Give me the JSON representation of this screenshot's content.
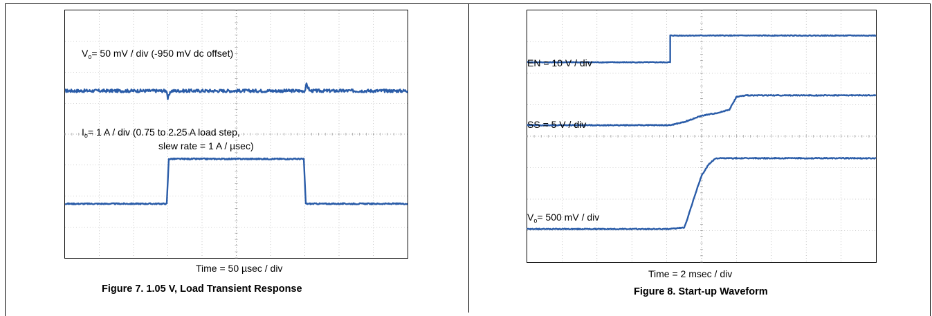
{
  "figures": [
    {
      "caption": "Figure 7. 1.05 V, Load Transient Response",
      "timebase": "Time = 50 µsec / div"
    },
    {
      "caption": "Figure 8. Start-up Waveform",
      "timebase": "Time = 2 msec / div"
    }
  ],
  "chart_data": [
    {
      "type": "line",
      "title": "Figure 7. 1.05 V, Load Transient Response",
      "xlabel": "Time = 50 µsec / div",
      "grid": true,
      "divisions": {
        "x": 10,
        "y": 8
      },
      "trace_color": "#2a5ca8",
      "series": [
        {
          "name_prefix": "V",
          "name_sub": "o",
          "name_rest": "= 50 mV / div (-950 mV dc offset)",
          "x": [
            0,
            2.97,
            3.0,
            3.1,
            3.3,
            7.0,
            7.05,
            7.15,
            7.3,
            10
          ],
          "y": [
            5.4,
            5.4,
            5.15,
            5.4,
            5.4,
            5.4,
            5.6,
            5.4,
            5.4,
            5.4
          ],
          "noise": 0.05
        },
        {
          "name_prefix": "I",
          "name_sub": "o",
          "name_rest": "= 1 A / div (0.75 to 2.25 A load step,",
          "name_line2": "slew rate = 1 A / µsec)",
          "x": [
            0,
            2.97,
            3.03,
            6.97,
            7.03,
            10
          ],
          "y": [
            1.75,
            1.75,
            3.2,
            3.2,
            1.75,
            1.75
          ],
          "noise": 0.02
        }
      ]
    },
    {
      "type": "line",
      "title": "Figure 8. Start-up Waveform",
      "xlabel": "Time = 2 msec / div",
      "grid": true,
      "divisions": {
        "x": 10,
        "y": 8
      },
      "trace_color": "#2a5ca8",
      "series": [
        {
          "name": "EN = 10 V / div",
          "x": [
            0,
            4.1,
            4.1,
            10
          ],
          "y": [
            6.35,
            6.35,
            7.2,
            7.2
          ],
          "noise": 0.012
        },
        {
          "name": "SS = 5 V / div",
          "x": [
            0,
            4.1,
            4.5,
            5.0,
            5.5,
            5.8,
            5.9,
            6.0,
            6.3,
            10
          ],
          "y": [
            4.35,
            4.35,
            4.45,
            4.65,
            4.75,
            4.85,
            5.05,
            5.25,
            5.3,
            5.3
          ],
          "noise": 0.015
        },
        {
          "name_prefix": "V",
          "name_sub": "o",
          "name_rest": "= 500 mV / div",
          "x": [
            0,
            4.1,
            4.5,
            4.6,
            4.8,
            5.0,
            5.2,
            5.35,
            5.4,
            10
          ],
          "y": [
            1.05,
            1.05,
            1.1,
            1.4,
            2.1,
            2.75,
            3.1,
            3.25,
            3.3,
            3.3
          ],
          "noise": 0.015
        }
      ]
    }
  ]
}
